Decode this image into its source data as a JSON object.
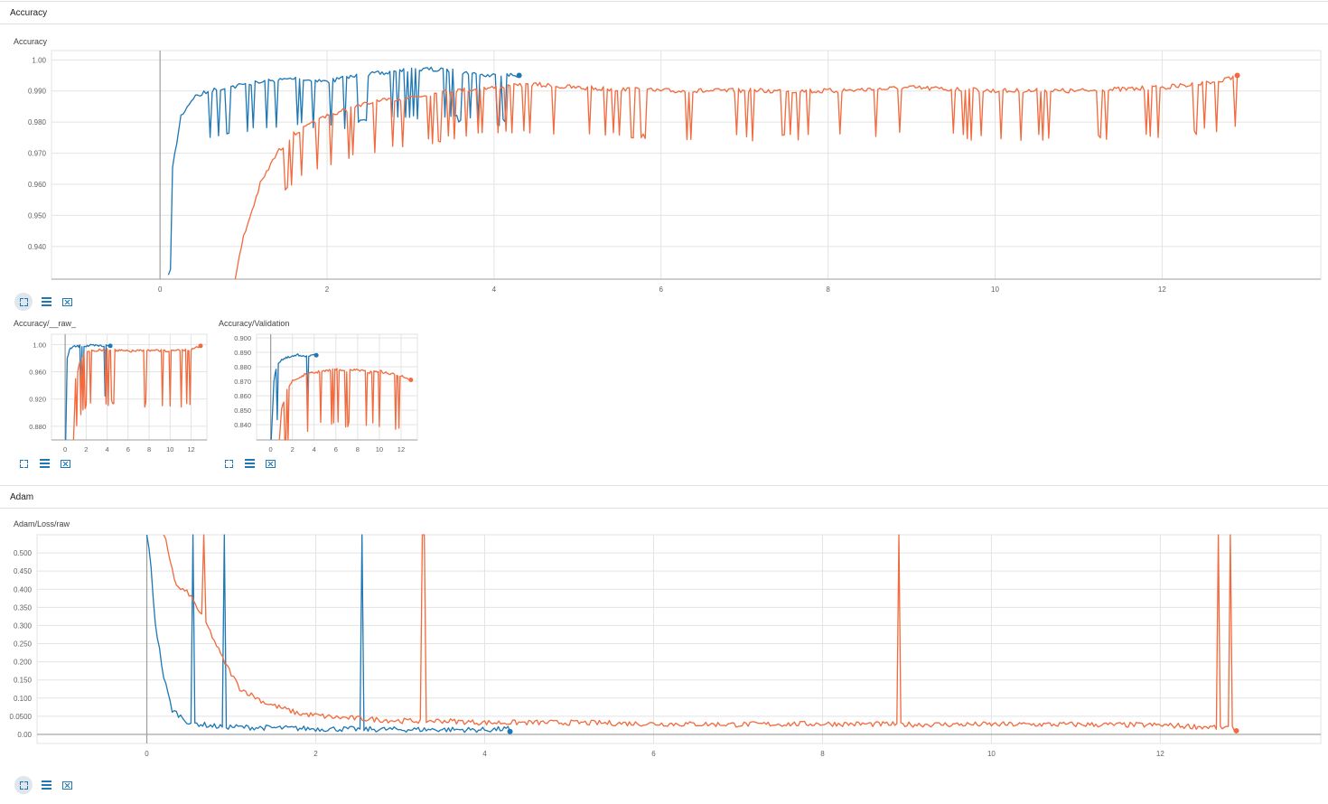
{
  "sections": {
    "accuracy": {
      "title": "Accuracy"
    },
    "adam": {
      "title": "Adam"
    }
  },
  "colors": {
    "run1": "#1f77b4",
    "run2": "#f26a3d",
    "run1_raw": "#c6dcec",
    "run2_raw": "#fcd3c4",
    "grid": "#e3e3e3",
    "axis": "#9e9e9e"
  },
  "icons": [
    "expand-icon",
    "toggle-lines-icon",
    "fit-domain-icon"
  ],
  "chart_data": [
    {
      "id": "main-accuracy",
      "type": "line",
      "title": "Accuracy",
      "xlim": [
        -1.3,
        13.9
      ],
      "ylim": [
        0.9295,
        1.003
      ],
      "x_ticks": [
        0,
        2,
        4,
        6,
        8,
        10,
        12
      ],
      "y_ticks": [
        0.94,
        0.95,
        0.96,
        0.97,
        0.98,
        0.99,
        1.0
      ],
      "y_tick_labels": [
        "0.940",
        "0.950",
        "0.960",
        "0.970",
        "0.980",
        "0.990",
        "1.00"
      ],
      "series": [
        {
          "color": "#1f77b4",
          "x": [
            0.1,
            0.15,
            0.25,
            0.4,
            0.6,
            0.8,
            1.0,
            1.3,
            1.6,
            2.0,
            2.4,
            2.8,
            3.2,
            3.6,
            3.9,
            4.2,
            4.3
          ],
          "y": [
            0.93,
            0.965,
            0.982,
            0.988,
            0.99,
            0.991,
            0.992,
            0.993,
            0.994,
            0.993,
            0.995,
            0.996,
            0.997,
            0.996,
            0.995,
            0.995,
            0.995
          ]
        },
        {
          "color": "#f26a3d",
          "x": [
            0.9,
            1.0,
            1.2,
            1.4,
            1.6,
            2.0,
            2.5,
            3.0,
            3.5,
            4.0,
            4.5,
            5,
            6,
            7,
            8,
            9,
            10,
            11,
            12,
            12.7,
            12.9
          ],
          "y": [
            0.93,
            0.943,
            0.96,
            0.97,
            0.976,
            0.982,
            0.986,
            0.988,
            0.99,
            0.991,
            0.992,
            0.991,
            0.99,
            0.99,
            0.99,
            0.991,
            0.99,
            0.99,
            0.991,
            0.993,
            0.995
          ]
        }
      ]
    },
    {
      "id": "accuracy-raw",
      "type": "line",
      "title": "Accuracy/__raw_",
      "xlim": [
        -1.3,
        13.5
      ],
      "ylim": [
        0.86,
        1.015
      ],
      "x_ticks": [
        0,
        2,
        4,
        6,
        8,
        10,
        12
      ],
      "y_ticks": [
        0.88,
        0.92,
        0.96,
        1.0
      ],
      "y_tick_labels": [
        "0.880",
        "0.920",
        "0.960",
        "1.00"
      ],
      "series": [
        {
          "color": "#1f77b4",
          "x": [
            0.05,
            0.2,
            0.5,
            1,
            2,
            3,
            4,
            4.3
          ],
          "y": [
            0.86,
            0.98,
            0.995,
            0.997,
            0.998,
            0.998,
            0.998,
            0.998
          ]
        },
        {
          "color": "#f26a3d",
          "x": [
            0.8,
            1.0,
            1.5,
            2,
            4,
            6,
            8,
            10,
            12,
            12.9
          ],
          "y": [
            0.86,
            0.95,
            0.98,
            0.99,
            0.992,
            0.99,
            0.991,
            0.99,
            0.992,
            0.998
          ]
        }
      ]
    },
    {
      "id": "accuracy-validation",
      "type": "line",
      "title": "Accuracy/Validation",
      "xlim": [
        -1.3,
        13.5
      ],
      "ylim": [
        0.8295,
        0.9025
      ],
      "x_ticks": [
        0,
        2,
        4,
        6,
        8,
        10,
        12
      ],
      "y_ticks": [
        0.84,
        0.85,
        0.86,
        0.87,
        0.88,
        0.89,
        0.9
      ],
      "y_tick_labels": [
        "0.840",
        "0.850",
        "0.860",
        "0.870",
        "0.880",
        "0.890",
        "0.900"
      ],
      "series": [
        {
          "color": "#1f77b4",
          "x": [
            0.05,
            0.3,
            0.6,
            1.0,
            1.5,
            2.0,
            2.5,
            3.0,
            3.5,
            4.2
          ],
          "y": [
            0.83,
            0.87,
            0.882,
            0.885,
            0.886,
            0.887,
            0.888,
            0.888,
            0.887,
            0.888
          ]
        },
        {
          "color": "#f26a3d",
          "x": [
            0.8,
            1.0,
            1.5,
            2,
            3,
            4,
            5,
            6,
            7,
            8,
            9,
            10,
            11,
            12,
            12.9
          ],
          "y": [
            0.83,
            0.85,
            0.865,
            0.87,
            0.874,
            0.876,
            0.877,
            0.878,
            0.877,
            0.878,
            0.876,
            0.877,
            0.875,
            0.874,
            0.871
          ]
        }
      ]
    },
    {
      "id": "adam-loss-raw",
      "type": "line",
      "title": "Adam/Loss/raw",
      "xlim": [
        -1.3,
        13.9
      ],
      "ylim": [
        -0.025,
        0.55
      ],
      "x_ticks": [
        0,
        2,
        4,
        6,
        8,
        10,
        12
      ],
      "y_ticks": [
        0.0,
        0.05,
        0.1,
        0.15,
        0.2,
        0.25,
        0.3,
        0.35,
        0.4,
        0.45,
        0.5
      ],
      "y_tick_labels": [
        "0.00",
        "0.0500",
        "0.100",
        "0.150",
        "0.200",
        "0.250",
        "0.300",
        "0.350",
        "0.400",
        "0.450",
        "0.500"
      ],
      "series": [
        {
          "color": "#1f77b4",
          "x": [
            0,
            0.05,
            0.1,
            0.2,
            0.3,
            0.5,
            0.8,
            1.2,
            1.6,
            2.0,
            2.5,
            3.0,
            3.5,
            4.0,
            4.3
          ],
          "y": [
            0.55,
            0.45,
            0.3,
            0.15,
            0.06,
            0.025,
            0.015,
            0.012,
            0.01,
            0.008,
            0.007,
            0.006,
            0.006,
            0.005,
            0.008
          ]
        },
        {
          "color": "#f26a3d",
          "x": [
            0.2,
            0.35,
            0.5,
            0.7,
            0.9,
            1.1,
            1.4,
            1.8,
            2.2,
            2.6,
            3.0,
            3.5,
            4.0,
            5,
            6,
            7,
            8,
            9,
            10,
            11,
            12,
            12.9
          ],
          "y": [
            0.55,
            0.4,
            0.38,
            0.3,
            0.2,
            0.12,
            0.08,
            0.05,
            0.04,
            0.035,
            0.03,
            0.03,
            0.025,
            0.025,
            0.022,
            0.02,
            0.022,
            0.02,
            0.02,
            0.02,
            0.018,
            0.01
          ]
        }
      ]
    }
  ]
}
